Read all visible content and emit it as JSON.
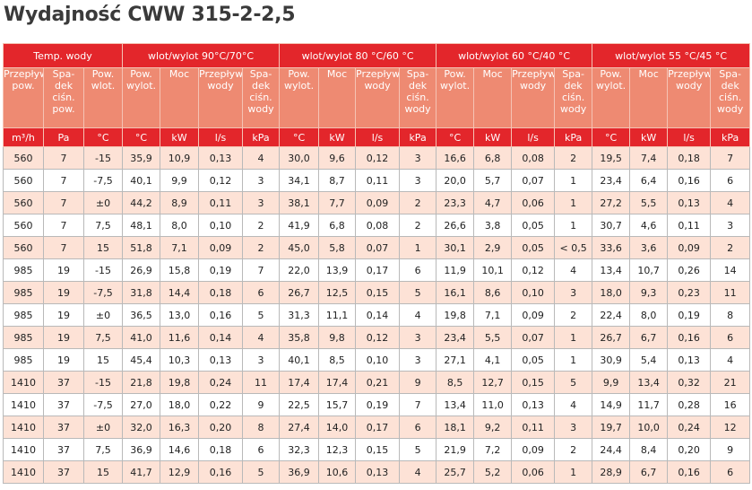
{
  "title": "Wydajność CWW 315-2-2,5",
  "table": {
    "header": {
      "groups": [
        {
          "label": "Temp. wody",
          "span": 3
        },
        {
          "label": "wlot/wylot 90°C/70°C",
          "span": 4
        },
        {
          "label": "wlot/wylot 80 °C/60 °C",
          "span": 4
        },
        {
          "label": "wlot/wylot 60 °C/40 °C",
          "span": 4
        },
        {
          "label": "wlot/wylot 55 °C/45 °C",
          "span": 4
        }
      ],
      "columns": [
        "Przepływ\npow.",
        "Spa-\ndek\nciśn.\npow.",
        "Pow.\nwlot.",
        "Pow.\nwylot.",
        "Moc",
        "Przepływ\nwody",
        "Spa-\ndek\nciśn.\nwody",
        "Pow.\nwylot.",
        "Moc",
        "Przepływ\nwody",
        "Spa-\ndek\nciśn.\nwody",
        "Pow.\nwylot.",
        "Moc",
        "Przepływ\nwody",
        "Spa-\ndek\nciśn.\nwody",
        "Pow.\nwylot.",
        "Moc",
        "Przepływ\nwody",
        "Spa-\ndek\nciśn.\nwody"
      ],
      "units": [
        "m³/h",
        "Pa",
        "°C",
        "°C",
        "kW",
        "l/s",
        "kPa",
        "°C",
        "kW",
        "l/s",
        "kPa",
        "°C",
        "kW",
        "l/s",
        "kPa",
        "°C",
        "kW",
        "l/s",
        "kPa"
      ]
    },
    "rows": [
      [
        "560",
        "7",
        "-15",
        "35,9",
        "10,9",
        "0,13",
        "4",
        "30,0",
        "9,6",
        "0,12",
        "3",
        "16,6",
        "6,8",
        "0,08",
        "2",
        "19,5",
        "7,4",
        "0,18",
        "7"
      ],
      [
        "560",
        "7",
        "-7,5",
        "40,1",
        "9,9",
        "0,12",
        "3",
        "34,1",
        "8,7",
        "0,11",
        "3",
        "20,0",
        "5,7",
        "0,07",
        "1",
        "23,4",
        "6,4",
        "0,16",
        "6"
      ],
      [
        "560",
        "7",
        "±0",
        "44,2",
        "8,9",
        "0,11",
        "3",
        "38,1",
        "7,7",
        "0,09",
        "2",
        "23,3",
        "4,7",
        "0,06",
        "1",
        "27,2",
        "5,5",
        "0,13",
        "4"
      ],
      [
        "560",
        "7",
        "7,5",
        "48,1",
        "8,0",
        "0,10",
        "2",
        "41,9",
        "6,8",
        "0,08",
        "2",
        "26,6",
        "3,8",
        "0,05",
        "1",
        "30,7",
        "4,6",
        "0,11",
        "3"
      ],
      [
        "560",
        "7",
        "15",
        "51,8",
        "7,1",
        "0,09",
        "2",
        "45,0",
        "5,8",
        "0,07",
        "1",
        "30,1",
        "2,9",
        "0,05",
        "< 0,5",
        "33,6",
        "3,6",
        "0,09",
        "2"
      ],
      [
        "985",
        "19",
        "-15",
        "26,9",
        "15,8",
        "0,19",
        "7",
        "22,0",
        "13,9",
        "0,17",
        "6",
        "11,9",
        "10,1",
        "0,12",
        "4",
        "13,4",
        "10,7",
        "0,26",
        "14"
      ],
      [
        "985",
        "19",
        "-7,5",
        "31,8",
        "14,4",
        "0,18",
        "6",
        "26,7",
        "12,5",
        "0,15",
        "5",
        "16,1",
        "8,6",
        "0,10",
        "3",
        "18,0",
        "9,3",
        "0,23",
        "11"
      ],
      [
        "985",
        "19",
        "±0",
        "36,5",
        "13,0",
        "0,16",
        "5",
        "31,3",
        "11,1",
        "0,14",
        "4",
        "19,8",
        "7,1",
        "0,09",
        "2",
        "22,4",
        "8,0",
        "0,19",
        "8"
      ],
      [
        "985",
        "19",
        "7,5",
        "41,0",
        "11,6",
        "0,14",
        "4",
        "35,8",
        "9,8",
        "0,12",
        "3",
        "23,4",
        "5,5",
        "0,07",
        "1",
        "26,7",
        "6,7",
        "0,16",
        "6"
      ],
      [
        "985",
        "19",
        "15",
        "45,4",
        "10,3",
        "0,13",
        "3",
        "40,1",
        "8,5",
        "0,10",
        "3",
        "27,1",
        "4,1",
        "0,05",
        "1",
        "30,9",
        "5,4",
        "0,13",
        "4"
      ],
      [
        "1410",
        "37",
        "-15",
        "21,8",
        "19,8",
        "0,24",
        "11",
        "17,4",
        "17,4",
        "0,21",
        "9",
        "8,5",
        "12,7",
        "0,15",
        "5",
        "9,9",
        "13,4",
        "0,32",
        "21"
      ],
      [
        "1410",
        "37",
        "-7,5",
        "27,0",
        "18,0",
        "0,22",
        "9",
        "22,5",
        "15,7",
        "0,19",
        "7",
        "13,4",
        "11,0",
        "0,13",
        "4",
        "14,9",
        "11,7",
        "0,28",
        "16"
      ],
      [
        "1410",
        "37",
        "±0",
        "32,0",
        "16,3",
        "0,20",
        "8",
        "27,4",
        "14,0",
        "0,17",
        "6",
        "18,1",
        "9,2",
        "0,11",
        "3",
        "19,7",
        "10,0",
        "0,24",
        "12"
      ],
      [
        "1410",
        "37",
        "7,5",
        "36,9",
        "14,6",
        "0,18",
        "6",
        "32,3",
        "12,3",
        "0,15",
        "5",
        "21,9",
        "7,2",
        "0,09",
        "2",
        "24,4",
        "8,4",
        "0,20",
        "9"
      ],
      [
        "1410",
        "37",
        "15",
        "41,7",
        "12,9",
        "0,16",
        "5",
        "36,9",
        "10,6",
        "0,13",
        "4",
        "25,7",
        "5,2",
        "0,06",
        "1",
        "28,9",
        "6,7",
        "0,16",
        "6"
      ]
    ]
  }
}
